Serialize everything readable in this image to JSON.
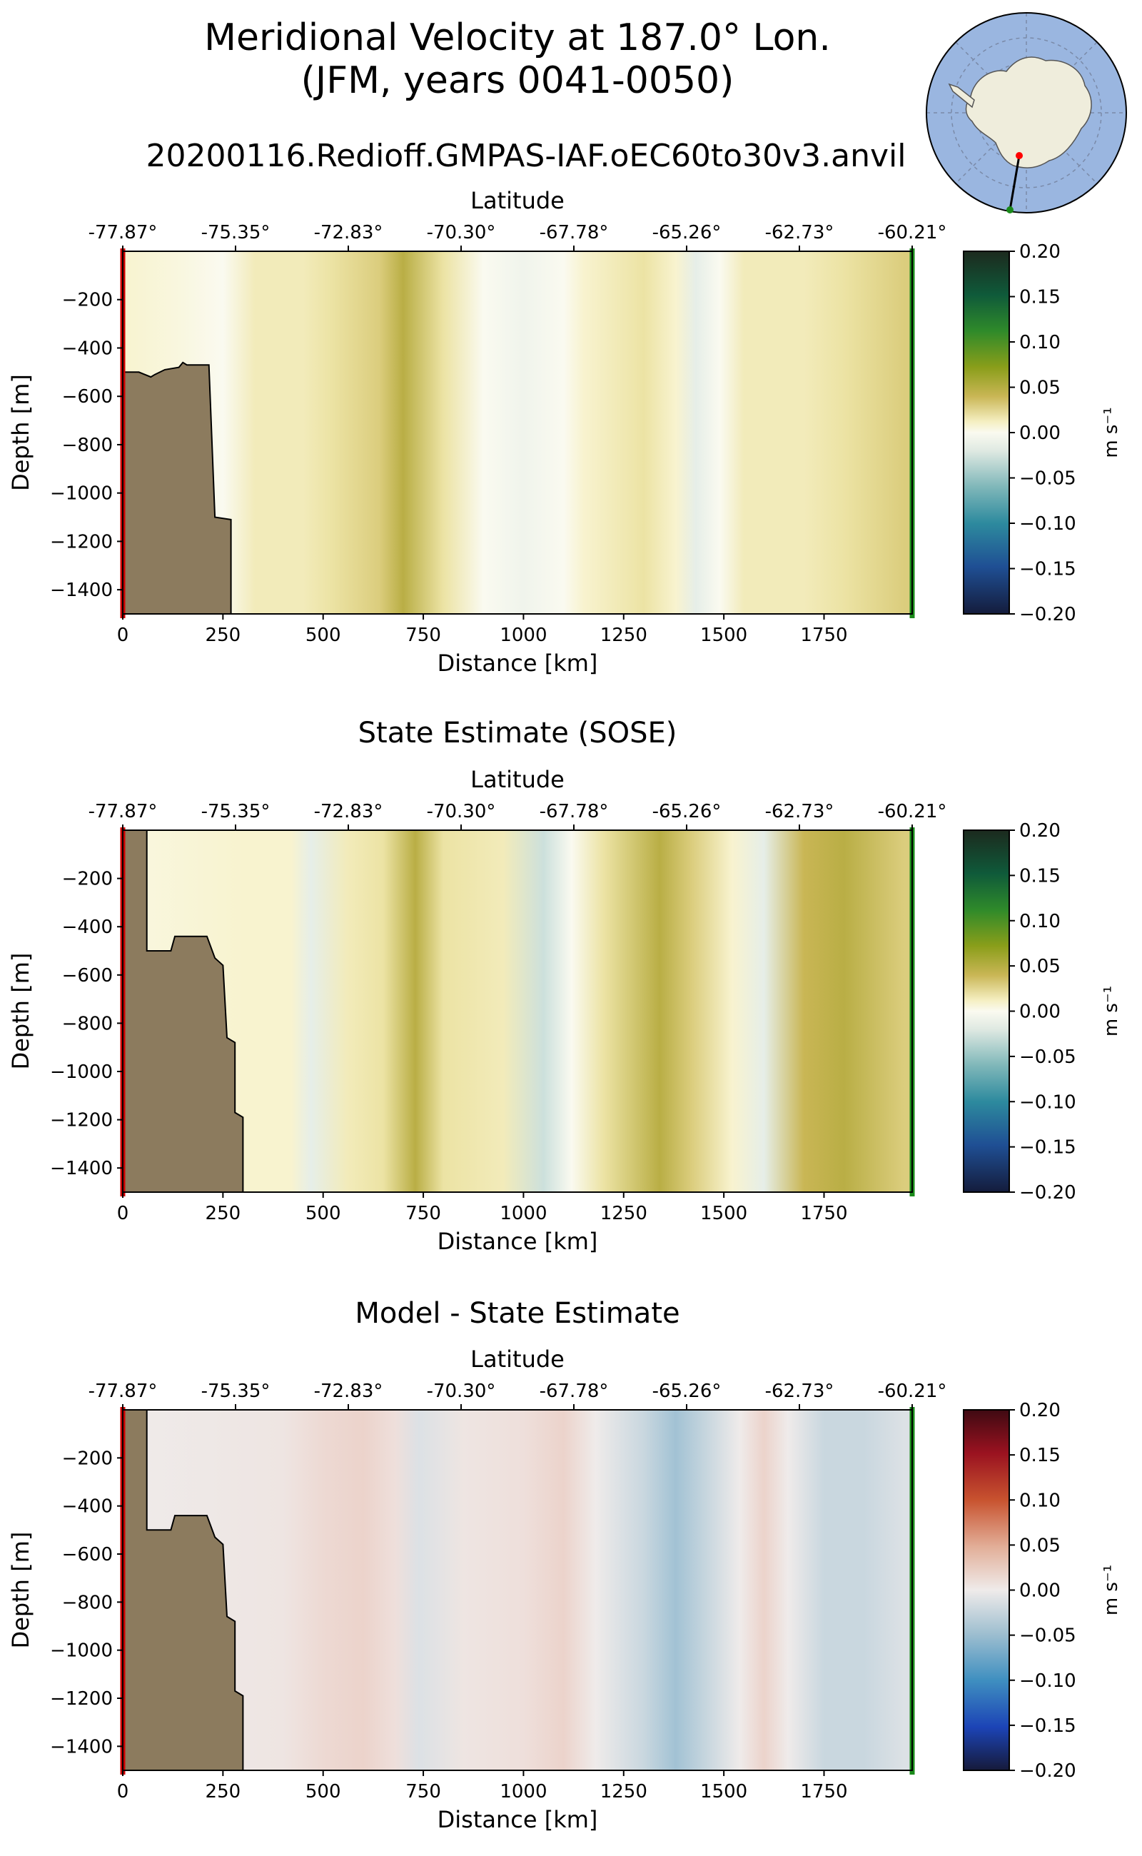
{
  "figure": {
    "title_line1": "Meridional Velocity at 187.0° Lon.",
    "title_line2": "(JFM, years 0041-0050)",
    "subtitle": "20200116.Redioff.GMPAS-IAF.oEC60to30v3.anvil"
  },
  "colors": {
    "bathymetry": "#8c7b5e",
    "start_marker": "#cc0000",
    "end_marker": "#1a8a1a"
  },
  "inset_map": {
    "ocean_color": "#9ab6e0",
    "land_color": "#efeddc",
    "start_point_color": "#ff0000",
    "end_point_color": "#1a8a1a"
  },
  "chart_data": [
    {
      "type": "heatmap",
      "title": "",
      "xlabel": "Distance [km]",
      "ylabel": "Depth [m]",
      "top_axis_label": "Latitude",
      "xlim": [
        0,
        1970
      ],
      "ylim": [
        -1500,
        0
      ],
      "x_ticks": [
        "0",
        "250",
        "500",
        "750",
        "1000",
        "1250",
        "1500",
        "1750"
      ],
      "y_ticks": [
        "−200",
        "−400",
        "−600",
        "−800",
        "−1000",
        "−1200",
        "−1400"
      ],
      "lat_ticks": [
        "-77.87°",
        "-75.35°",
        "-72.83°",
        "-70.30°",
        "-67.78°",
        "-65.26°",
        "-62.73°",
        "-60.21°"
      ],
      "colorbar": {
        "label": "m s⁻¹",
        "colormap": "olive-green diverging",
        "range": [
          -0.2,
          0.2
        ],
        "ticks": [
          "0.20",
          "0.15",
          "0.10",
          "0.05",
          "0.00",
          "−0.05",
          "−0.10",
          "−0.15",
          "−0.20"
        ]
      },
      "bathymetry_profile": [
        [
          0,
          -500
        ],
        [
          40,
          -500
        ],
        [
          55,
          -510
        ],
        [
          70,
          -520
        ],
        [
          80,
          -510
        ],
        [
          105,
          -490
        ],
        [
          140,
          -480
        ],
        [
          150,
          -460
        ],
        [
          160,
          -470
        ],
        [
          180,
          -470
        ],
        [
          215,
          -470
        ],
        [
          230,
          -1100
        ],
        [
          270,
          -1110
        ]
      ],
      "velocity_by_distance": [
        [
          0,
          0.01
        ],
        [
          150,
          0.005
        ],
        [
          250,
          0.0
        ],
        [
          330,
          0.02
        ],
        [
          450,
          0.02
        ],
        [
          520,
          0.03
        ],
        [
          640,
          0.04
        ],
        [
          700,
          0.06
        ],
        [
          800,
          0.03
        ],
        [
          900,
          0.0
        ],
        [
          1000,
          -0.005
        ],
        [
          1100,
          0.0
        ],
        [
          1150,
          0.01
        ],
        [
          1300,
          0.03
        ],
        [
          1380,
          0.01
        ],
        [
          1430,
          -0.01
        ],
        [
          1490,
          0.0
        ],
        [
          1550,
          0.02
        ],
        [
          1700,
          0.02
        ],
        [
          1800,
          0.03
        ],
        [
          1950,
          0.04
        ]
      ]
    },
    {
      "type": "heatmap",
      "title": "State Estimate (SOSE)",
      "xlabel": "Distance [km]",
      "ylabel": "Depth [m]",
      "top_axis_label": "Latitude",
      "xlim": [
        0,
        1970
      ],
      "ylim": [
        -1500,
        0
      ],
      "x_ticks": [
        "0",
        "250",
        "500",
        "750",
        "1000",
        "1250",
        "1500",
        "1750"
      ],
      "y_ticks": [
        "−200",
        "−400",
        "−600",
        "−800",
        "−1000",
        "−1200",
        "−1400"
      ],
      "lat_ticks": [
        "-77.87°",
        "-75.35°",
        "-72.83°",
        "-70.30°",
        "-67.78°",
        "-65.26°",
        "-62.73°",
        "-60.21°"
      ],
      "colorbar": {
        "label": "m s⁻¹",
        "colormap": "olive-green diverging",
        "range": [
          -0.2,
          0.2
        ],
        "ticks": [
          "0.20",
          "0.15",
          "0.10",
          "0.05",
          "0.00",
          "−0.05",
          "−0.10",
          "−0.15",
          "−0.20"
        ]
      },
      "bathymetry_profile": [
        [
          0,
          0
        ],
        [
          60,
          0
        ],
        [
          60,
          -500
        ],
        [
          120,
          -500
        ],
        [
          130,
          -440
        ],
        [
          210,
          -440
        ],
        [
          230,
          -530
        ],
        [
          250,
          -560
        ],
        [
          260,
          -860
        ],
        [
          280,
          -880
        ],
        [
          280,
          -1170
        ],
        [
          300,
          -1190
        ]
      ],
      "velocity_by_distance": [
        [
          0,
          0.005
        ],
        [
          300,
          0.01
        ],
        [
          420,
          0.01
        ],
        [
          470,
          -0.01
        ],
        [
          560,
          0.02
        ],
        [
          650,
          0.03
        ],
        [
          730,
          0.06
        ],
        [
          800,
          0.03
        ],
        [
          950,
          0.02
        ],
        [
          1050,
          -0.02
        ],
        [
          1120,
          0.0
        ],
        [
          1200,
          0.03
        ],
        [
          1340,
          0.06
        ],
        [
          1420,
          0.04
        ],
        [
          1520,
          0.01
        ],
        [
          1600,
          -0.01
        ],
        [
          1700,
          0.05
        ],
        [
          1800,
          0.06
        ],
        [
          1950,
          0.04
        ]
      ]
    },
    {
      "type": "heatmap",
      "title": "Model - State Estimate",
      "xlabel": "Distance [km]",
      "ylabel": "Depth [m]",
      "top_axis_label": "Latitude",
      "xlim": [
        0,
        1970
      ],
      "ylim": [
        -1500,
        0
      ],
      "x_ticks": [
        "0",
        "250",
        "500",
        "750",
        "1000",
        "1250",
        "1500",
        "1750"
      ],
      "y_ticks": [
        "−200",
        "−400",
        "−600",
        "−800",
        "−1000",
        "−1200",
        "−1400"
      ],
      "lat_ticks": [
        "-77.87°",
        "-75.35°",
        "-72.83°",
        "-70.30°",
        "-67.78°",
        "-65.26°",
        "-62.73°",
        "-60.21°"
      ],
      "colorbar": {
        "label": "m s⁻¹",
        "colormap": "red-blue diverging",
        "range": [
          -0.2,
          0.2
        ],
        "ticks": [
          "0.20",
          "0.15",
          "0.10",
          "0.05",
          "0.00",
          "−0.05",
          "−0.10",
          "−0.15",
          "−0.20"
        ]
      },
      "bathymetry_profile": [
        [
          0,
          0
        ],
        [
          60,
          0
        ],
        [
          60,
          -500
        ],
        [
          120,
          -500
        ],
        [
          130,
          -440
        ],
        [
          210,
          -440
        ],
        [
          230,
          -530
        ],
        [
          250,
          -560
        ],
        [
          260,
          -860
        ],
        [
          280,
          -880
        ],
        [
          280,
          -1170
        ],
        [
          300,
          -1190
        ]
      ],
      "velocity_by_distance": [
        [
          0,
          0.0
        ],
        [
          400,
          0.005
        ],
        [
          500,
          0.015
        ],
        [
          600,
          0.02
        ],
        [
          680,
          0.01
        ],
        [
          740,
          -0.01
        ],
        [
          850,
          0.005
        ],
        [
          1000,
          0.01
        ],
        [
          1100,
          0.02
        ],
        [
          1180,
          0.0
        ],
        [
          1300,
          -0.02
        ],
        [
          1380,
          -0.04
        ],
        [
          1460,
          -0.02
        ],
        [
          1540,
          0.0
        ],
        [
          1600,
          0.02
        ],
        [
          1660,
          0.0
        ],
        [
          1750,
          -0.02
        ],
        [
          1850,
          -0.02
        ],
        [
          1950,
          -0.01
        ]
      ]
    }
  ]
}
